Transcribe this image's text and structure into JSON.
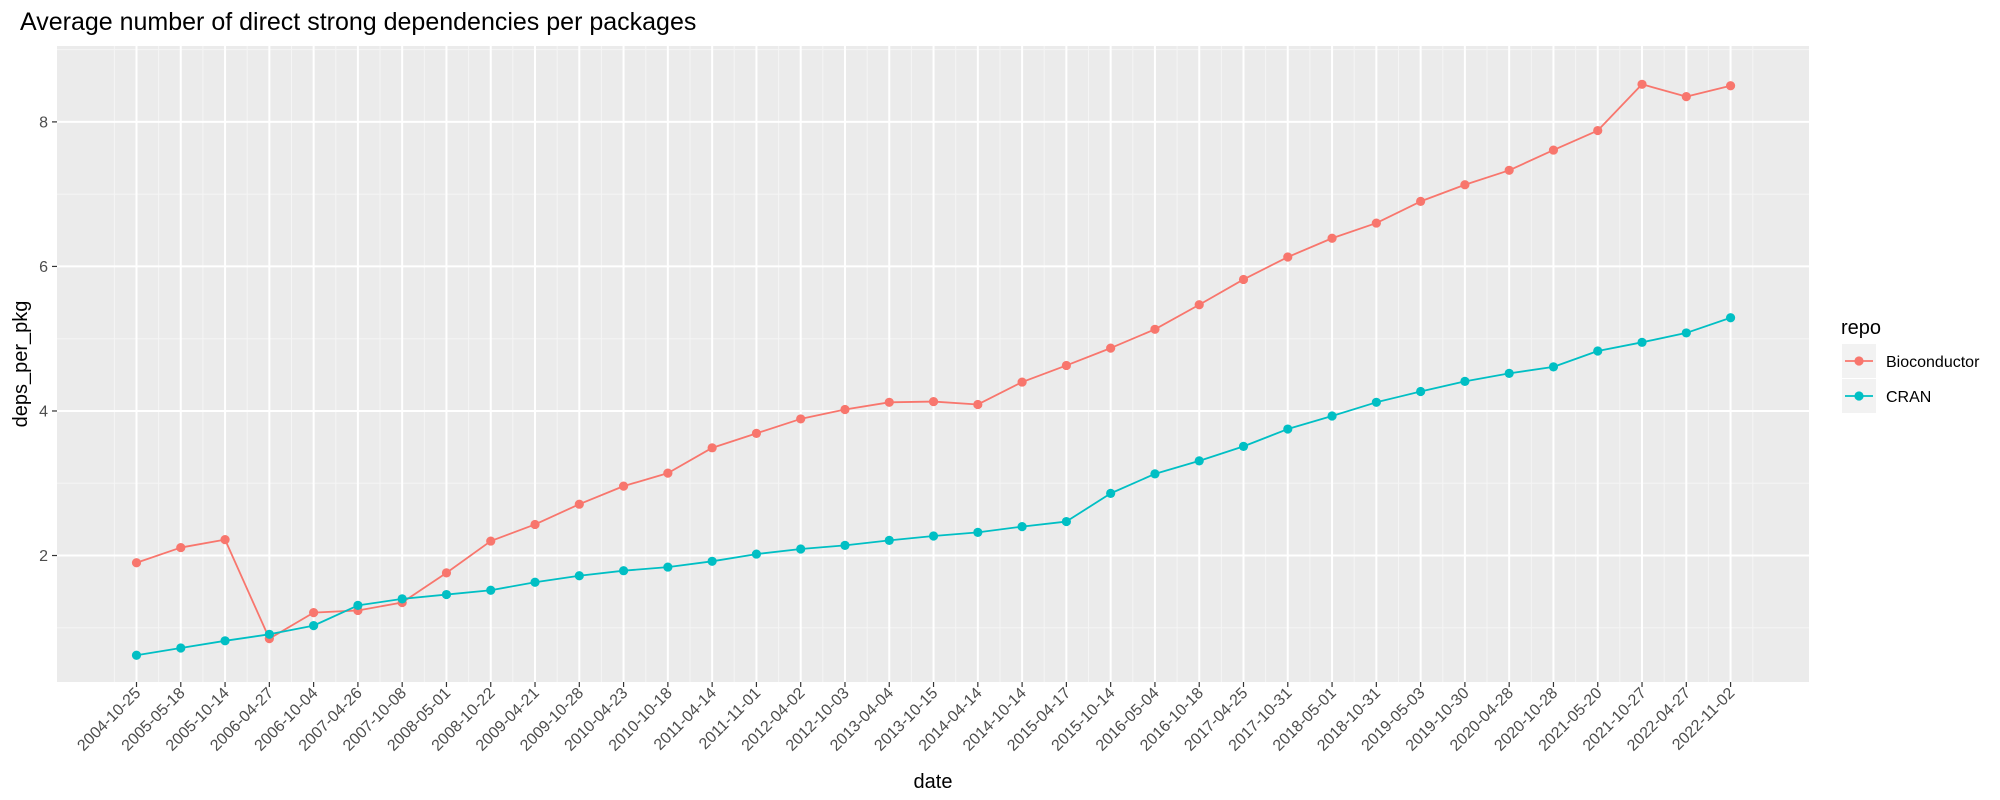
{
  "chart_data": {
    "type": "line",
    "title": "Average number of direct strong dependencies per packages",
    "xlabel": "date",
    "ylabel": "deps_per_pkg",
    "x": [
      "2004-10-25",
      "2005-05-18",
      "2005-10-14",
      "2006-04-27",
      "2006-10-04",
      "2007-04-26",
      "2007-10-08",
      "2008-05-01",
      "2008-10-22",
      "2009-04-21",
      "2009-10-28",
      "2010-04-23",
      "2010-10-18",
      "2011-04-14",
      "2011-11-01",
      "2012-04-02",
      "2012-10-03",
      "2013-04-04",
      "2013-10-15",
      "2014-04-14",
      "2014-10-14",
      "2015-04-17",
      "2015-10-14",
      "2016-05-04",
      "2016-10-18",
      "2017-04-25",
      "2017-10-31",
      "2018-05-01",
      "2018-10-31",
      "2019-05-03",
      "2019-10-30",
      "2020-04-28",
      "2020-10-28",
      "2021-05-20",
      "2021-10-27",
      "2022-04-27",
      "2022-11-02"
    ],
    "ylim": [
      0.25,
      9.05
    ],
    "yticks": [
      2,
      4,
      6,
      8
    ],
    "grid": true,
    "legend_title": "repo",
    "legend_position": "right",
    "series": [
      {
        "name": "Bioconductor",
        "color": "#F8766D",
        "values": [
          1.9,
          2.11,
          2.22,
          0.85,
          1.21,
          1.24,
          1.35,
          1.76,
          2.2,
          2.43,
          2.71,
          2.96,
          3.14,
          3.49,
          3.69,
          3.89,
          4.02,
          4.12,
          4.13,
          4.09,
          4.4,
          4.63,
          4.87,
          5.13,
          5.47,
          5.82,
          6.13,
          6.39,
          6.6,
          6.9,
          7.13,
          7.33,
          7.61,
          7.88,
          8.52,
          8.35,
          8.5
        ]
      },
      {
        "name": "CRAN",
        "color": "#00BFC4",
        "values": [
          0.62,
          0.72,
          0.82,
          0.91,
          1.03,
          1.31,
          1.4,
          1.46,
          1.52,
          1.63,
          1.72,
          1.79,
          1.84,
          1.92,
          2.02,
          2.09,
          2.14,
          2.21,
          2.27,
          2.32,
          2.4,
          2.47,
          2.86,
          3.13,
          3.31,
          3.51,
          3.75,
          3.93,
          4.12,
          4.27,
          4.41,
          4.52,
          4.61,
          4.83,
          4.95,
          5.08,
          5.29
        ]
      }
    ]
  }
}
